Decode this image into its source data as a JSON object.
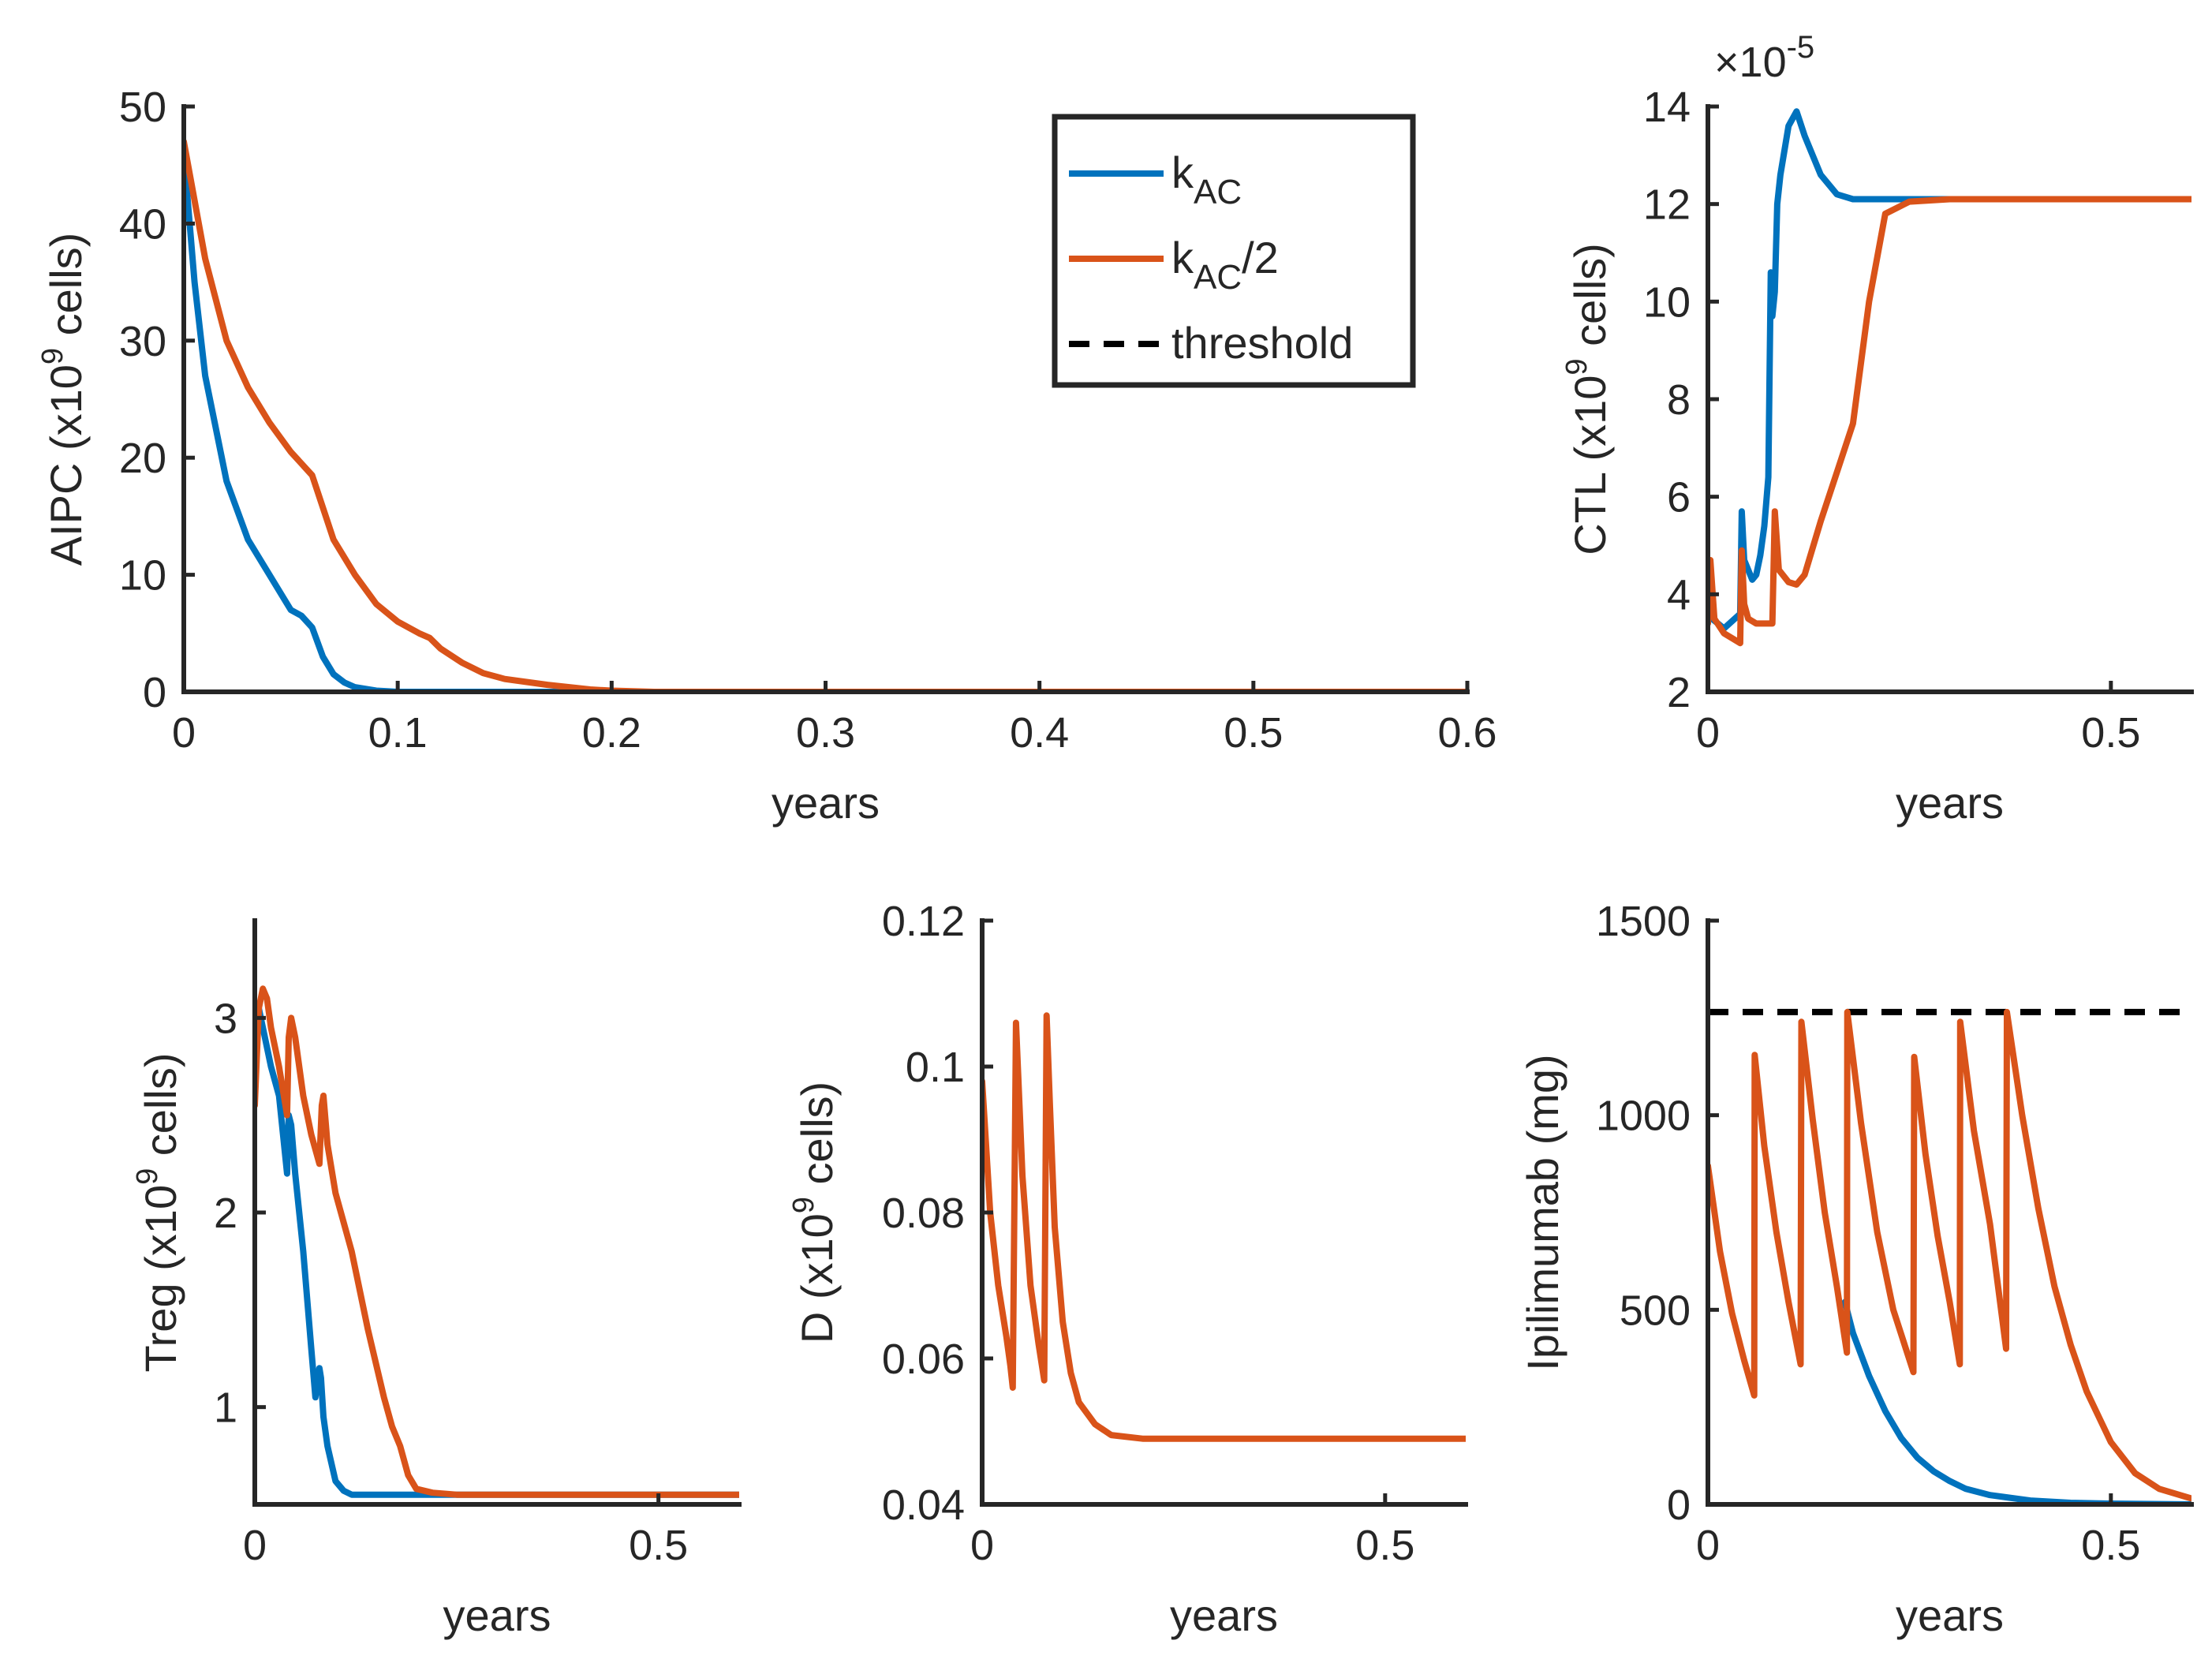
{
  "colors": {
    "blue": "#0072BD",
    "orange": "#D95319",
    "black": "#000000",
    "axis": "#262626"
  },
  "legend": {
    "entries": [
      {
        "base": "k",
        "sub": "AC",
        "suffix": "",
        "color": "#0072BD",
        "dash": false
      },
      {
        "base": "k",
        "sub": "AC",
        "suffix": "/2",
        "color": "#D95319",
        "dash": false
      },
      {
        "base": "threshold",
        "sub": "",
        "suffix": "",
        "color": "#000000",
        "dash": true
      }
    ]
  },
  "chart_data": [
    {
      "id": "aipc",
      "type": "line",
      "xlabel": "years",
      "ylabel": {
        "pre": "AIPC (x10",
        "sup": "9",
        "post": " cells)"
      },
      "xlim": [
        0,
        0.6
      ],
      "ylim": [
        0,
        50
      ],
      "xticks": [
        "0",
        "0.1",
        "0.2",
        "0.3",
        "0.4",
        "0.5",
        "0.6"
      ],
      "yticks": [
        "0",
        "10",
        "20",
        "30",
        "40",
        "50"
      ],
      "series": [
        {
          "color": "#0072BD",
          "x": [
            0,
            0.005,
            0.01,
            0.02,
            0.03,
            0.04,
            0.05,
            0.055,
            0.06,
            0.065,
            0.07,
            0.075,
            0.08,
            0.09,
            0.1,
            0.12,
            0.6
          ],
          "y": [
            46,
            35,
            27,
            18,
            13,
            10,
            7,
            6.5,
            5.5,
            3,
            1.5,
            0.8,
            0.4,
            0.1,
            0,
            0,
            0
          ]
        },
        {
          "color": "#D95319",
          "x": [
            0,
            0.01,
            0.02,
            0.03,
            0.04,
            0.05,
            0.06,
            0.07,
            0.08,
            0.09,
            0.1,
            0.11,
            0.115,
            0.12,
            0.13,
            0.14,
            0.15,
            0.17,
            0.19,
            0.2,
            0.22,
            0.6
          ],
          "y": [
            47,
            37,
            30,
            26,
            23,
            20.5,
            18.5,
            13,
            10,
            7.5,
            6,
            5,
            4.6,
            3.7,
            2.5,
            1.6,
            1.1,
            0.6,
            0.2,
            0.1,
            0,
            0
          ]
        }
      ]
    },
    {
      "id": "ctl",
      "type": "line",
      "xlabel": "years",
      "ylabel": {
        "pre": "CTL (x10",
        "sup": "9",
        "post": " cells)"
      },
      "exponent": {
        "base": "×10",
        "sup": "-5"
      },
      "xlim": [
        0,
        0.6
      ],
      "ylim": [
        2,
        14
      ],
      "xticks": [
        "0",
        "0.5"
      ],
      "xtickvals": [
        0,
        0.5
      ],
      "yticks": [
        "2",
        "4",
        "6",
        "8",
        "10",
        "12",
        "14"
      ],
      "series": [
        {
          "color": "#0072BD",
          "x": [
            0,
            0.005,
            0.02,
            0.04,
            0.042,
            0.045,
            0.05,
            0.055,
            0.06,
            0.065,
            0.07,
            0.075,
            0.078,
            0.08,
            0.083,
            0.086,
            0.09,
            0.1,
            0.11,
            0.12,
            0.14,
            0.16,
            0.18,
            0.2,
            0.25,
            0.3,
            0.6
          ],
          "y": [
            4.3,
            3.5,
            3.3,
            3.6,
            5.7,
            4.7,
            4.5,
            4.3,
            4.4,
            4.8,
            5.4,
            6.4,
            10.6,
            9.7,
            10.2,
            12,
            12.6,
            13.6,
            13.9,
            13.4,
            12.6,
            12.2,
            12.1,
            12.1,
            12.1,
            12.1,
            12.1
          ]
        },
        {
          "color": "#D95319",
          "x": [
            0,
            0.003,
            0.008,
            0.02,
            0.04,
            0.042,
            0.045,
            0.05,
            0.06,
            0.07,
            0.08,
            0.083,
            0.088,
            0.1,
            0.11,
            0.12,
            0.14,
            0.16,
            0.18,
            0.2,
            0.22,
            0.25,
            0.3,
            0.6
          ],
          "y": [
            3.4,
            4.7,
            3.5,
            3.2,
            3.0,
            4.9,
            3.8,
            3.5,
            3.4,
            3.4,
            3.4,
            5.7,
            4.5,
            4.25,
            4.2,
            4.4,
            5.5,
            6.5,
            7.5,
            10,
            11.8,
            12.05,
            12.1,
            12.1
          ]
        }
      ]
    },
    {
      "id": "treg",
      "type": "line",
      "xlabel": "years",
      "ylabel": {
        "pre": "Treg (x10",
        "sup": "9",
        "post": " cells)"
      },
      "xlim": [
        0,
        0.6
      ],
      "ylim": [
        0.5,
        3.5
      ],
      "xticks": [
        "0",
        "0.5"
      ],
      "xtickvals": [
        0,
        0.5
      ],
      "yticks": [
        "1",
        "2",
        "3"
      ],
      "ytickvals": [
        1,
        2,
        3
      ],
      "series": [
        {
          "color": "#0072BD",
          "x": [
            0,
            0.005,
            0.01,
            0.02,
            0.03,
            0.04,
            0.042,
            0.045,
            0.05,
            0.06,
            0.07,
            0.075,
            0.08,
            0.082,
            0.085,
            0.09,
            0.1,
            0.11,
            0.12,
            0.14,
            0.16,
            0.2,
            0.6
          ],
          "y": [
            2.9,
            3.05,
            2.95,
            2.75,
            2.6,
            2.2,
            2.5,
            2.45,
            2.2,
            1.8,
            1.3,
            1.05,
            1.2,
            1.15,
            0.95,
            0.8,
            0.62,
            0.57,
            0.55,
            0.55,
            0.55,
            0.55,
            0.55
          ]
        },
        {
          "color": "#D95319",
          "x": [
            0,
            0.005,
            0.01,
            0.015,
            0.02,
            0.03,
            0.04,
            0.042,
            0.045,
            0.05,
            0.06,
            0.07,
            0.08,
            0.083,
            0.085,
            0.088,
            0.09,
            0.1,
            0.12,
            0.14,
            0.16,
            0.17,
            0.18,
            0.19,
            0.2,
            0.22,
            0.25,
            0.3,
            0.6
          ],
          "y": [
            2.55,
            3.05,
            3.15,
            3.1,
            2.95,
            2.75,
            2.5,
            2.9,
            3.0,
            2.9,
            2.6,
            2.4,
            2.25,
            2.55,
            2.6,
            2.45,
            2.35,
            2.1,
            1.8,
            1.4,
            1.05,
            0.9,
            0.8,
            0.65,
            0.58,
            0.56,
            0.55,
            0.55,
            0.55
          ]
        }
      ]
    },
    {
      "id": "d",
      "type": "line",
      "xlabel": "years",
      "ylabel": {
        "pre": "D (x10",
        "sup": "9",
        "post": " cells)"
      },
      "xlim": [
        0,
        0.6
      ],
      "ylim": [
        0.04,
        0.12
      ],
      "xticks": [
        "0",
        "0.5"
      ],
      "xtickvals": [
        0,
        0.5
      ],
      "yticks": [
        "0.04",
        "0.06",
        "0.08",
        "0.1",
        "0.12"
      ],
      "ytickvals": [
        0.04,
        0.06,
        0.08,
        0.1,
        0.12
      ],
      "series": [
        {
          "color": "#D95319",
          "x": [
            0,
            0.01,
            0.02,
            0.03,
            0.035,
            0.038,
            0.042,
            0.05,
            0.06,
            0.07,
            0.077,
            0.08,
            0.084,
            0.09,
            0.1,
            0.11,
            0.12,
            0.14,
            0.16,
            0.2,
            0.25,
            0.3,
            0.6
          ],
          "y": [
            0.098,
            0.08,
            0.07,
            0.063,
            0.059,
            0.056,
            0.106,
            0.085,
            0.07,
            0.062,
            0.057,
            0.107,
            0.095,
            0.078,
            0.065,
            0.058,
            0.054,
            0.051,
            0.0495,
            0.049,
            0.049,
            0.049,
            0.049
          ]
        }
      ]
    },
    {
      "id": "ipilimumab",
      "type": "line",
      "xlabel": "years",
      "ylabel": {
        "pre": "Ipilimumab (mg)",
        "sup": "",
        "post": ""
      },
      "xlim": [
        0,
        0.6
      ],
      "ylim": [
        0,
        1500
      ],
      "xticks": [
        "0",
        "0.5"
      ],
      "xtickvals": [
        0,
        0.5
      ],
      "yticks": [
        "0",
        "500",
        "1000",
        "1500"
      ],
      "ytickvals": [
        0,
        500,
        1000,
        1500
      ],
      "threshold": 1265,
      "series": [
        {
          "color": "#0072BD",
          "x": [
            0.17,
            0.18,
            0.2,
            0.22,
            0.24,
            0.26,
            0.28,
            0.3,
            0.32,
            0.35,
            0.4,
            0.45,
            0.5,
            0.55,
            0.6
          ],
          "y": [
            520,
            440,
            330,
            240,
            170,
            120,
            85,
            60,
            40,
            24,
            10,
            4,
            2,
            1,
            0
          ]
        },
        {
          "color": "#D95319",
          "x": [
            0,
            0.015,
            0.03,
            0.045,
            0.0575,
            0.058,
            0.07,
            0.085,
            0.1,
            0.115,
            0.116,
            0.13,
            0.145,
            0.16,
            0.1725,
            0.173,
            0.19,
            0.21,
            0.23,
            0.255,
            0.256,
            0.27,
            0.285,
            0.3,
            0.3125,
            0.313,
            0.33,
            0.35,
            0.37,
            0.371,
            0.39,
            0.41,
            0.43,
            0.45,
            0.47,
            0.5,
            0.53,
            0.56,
            0.6
          ],
          "y": [
            870,
            650,
            490,
            370,
            280,
            1155,
            920,
            700,
            520,
            360,
            1240,
            990,
            750,
            560,
            390,
            1265,
            980,
            700,
            500,
            340,
            1150,
            900,
            690,
            520,
            360,
            1240,
            960,
            720,
            400,
            1265,
            1000,
            760,
            560,
            410,
            290,
            160,
            80,
            40,
            15
          ]
        }
      ]
    }
  ]
}
